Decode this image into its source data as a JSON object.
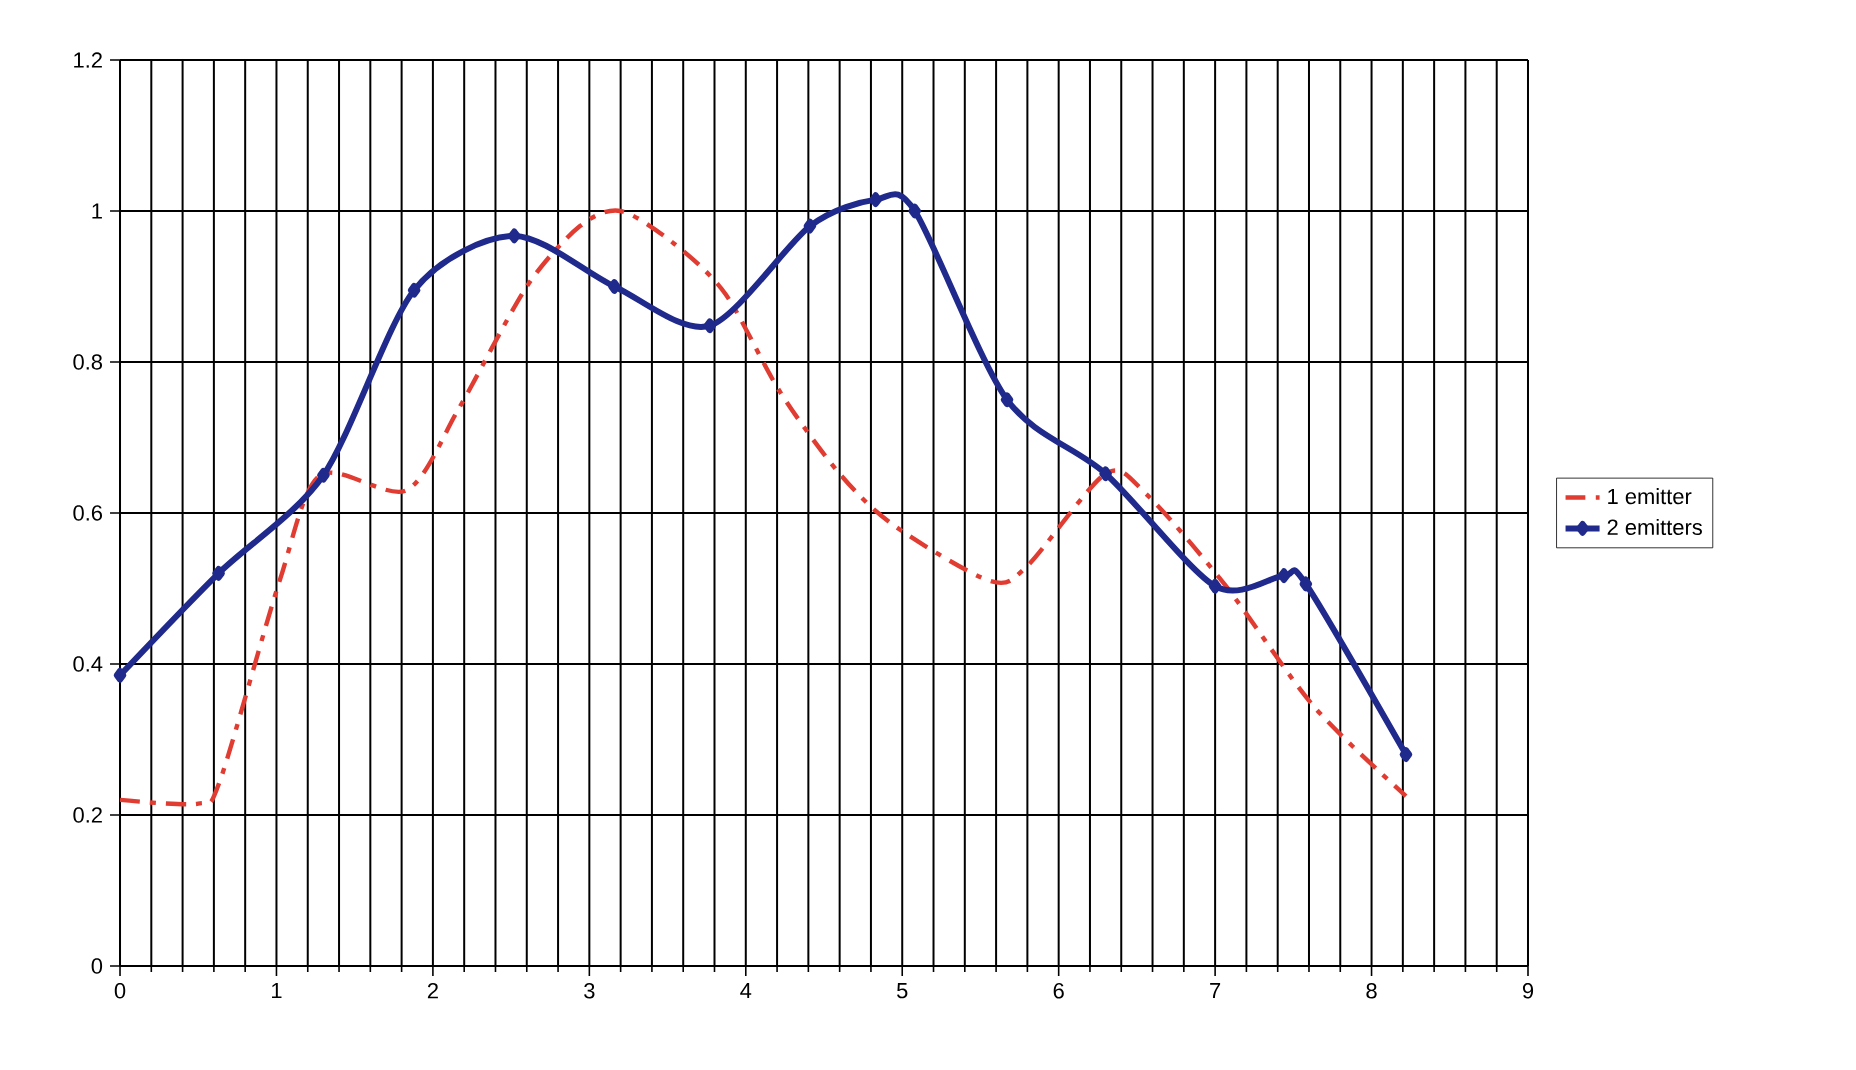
{
  "chart_data": {
    "type": "line",
    "xlim": [
      0,
      9
    ],
    "ylim": [
      0,
      1.2
    ],
    "xticks": [
      0,
      1,
      2,
      3,
      4,
      5,
      6,
      7,
      8,
      9
    ],
    "yticks": [
      0,
      0.2,
      0.4,
      0.6,
      0.8,
      1,
      1.2
    ],
    "grid": true,
    "legend": "right",
    "series": [
      {
        "name": "1 emitter",
        "color": "#e03c31",
        "line_style": "dashdotted",
        "marker": "none",
        "x": [
          0,
          0.5,
          0.64,
          1.02,
          1.28,
          1.83,
          2.17,
          2.6,
          2.94,
          3.2,
          3.54,
          3.87,
          4.22,
          4.6,
          4.95,
          5.56,
          5.8,
          6.3,
          6.56,
          7.07,
          7.63,
          8.22
        ],
        "values": [
          0.22,
          0.215,
          0.246,
          0.51,
          0.65,
          0.63,
          0.74,
          0.9,
          0.98,
          1.0,
          0.957,
          0.89,
          0.76,
          0.652,
          0.583,
          0.51,
          0.53,
          0.652,
          0.625,
          0.503,
          0.344,
          0.225
        ]
      },
      {
        "name": "2 emitters",
        "color": "#1f2a8c",
        "line_style": "solid",
        "marker": "diamond",
        "x": [
          0,
          0.63,
          1.3,
          1.88,
          2.52,
          3.16,
          3.77,
          4.41,
          4.83,
          5.08,
          5.67,
          6.3,
          7.0,
          7.44,
          7.58,
          8.22
        ],
        "values": [
          0.385,
          0.52,
          0.65,
          0.895,
          0.967,
          0.9,
          0.848,
          0.98,
          1.015,
          1.0,
          0.75,
          0.652,
          0.503,
          0.517,
          0.506,
          0.28
        ]
      }
    ]
  }
}
